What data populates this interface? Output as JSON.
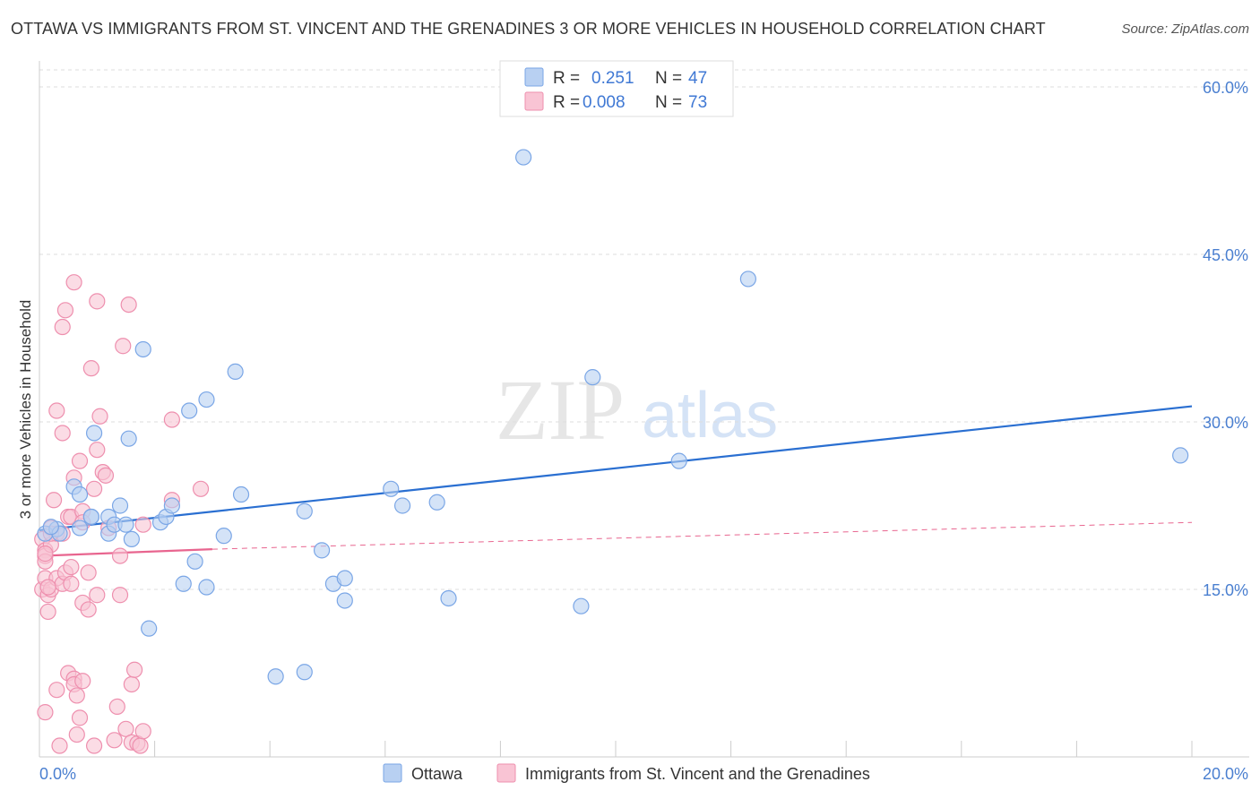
{
  "title": "OTTAWA VS IMMIGRANTS FROM ST. VINCENT AND THE GRENADINES 3 OR MORE VEHICLES IN HOUSEHOLD CORRELATION CHART",
  "source": "Source: ZipAtlas.com",
  "watermark": {
    "zip": "ZIP",
    "atlas": "atlas"
  },
  "colors": {
    "ottawa_fill": "#b8d0f2",
    "ottawa_stroke": "#7aa6e6",
    "ottawa_line": "#2a6fd1",
    "svg_fill": "#f9c4d4",
    "svg_stroke": "#ee8fae",
    "svg_line": "#e8658f",
    "grid": "#dddddd",
    "tick": "#4a7fd0"
  },
  "legend": {
    "rows": [
      {
        "r_label": "R =",
        "r_value": "0.251",
        "n_label": "N =",
        "n_value": "47"
      },
      {
        "r_label": "R =",
        "r_value": "0.008",
        "n_label": "N =",
        "n_value": "73"
      }
    ]
  },
  "chart_data": {
    "type": "scatter",
    "title": "OTTAWA VS IMMIGRANTS FROM ST. VINCENT AND THE GRENADINES 3 OR MORE VEHICLES IN HOUSEHOLD CORRELATION CHART",
    "xlabel": "",
    "ylabel": "3 or more Vehicles in Household",
    "xlim": [
      0,
      20
    ],
    "ylim": [
      0,
      60
    ],
    "x_tick_labels": [
      "0.0%",
      "20.0%"
    ],
    "y_ticks": [
      15,
      30,
      45,
      60
    ],
    "y_tick_labels": [
      "15.0%",
      "30.0%",
      "45.0%",
      "60.0%"
    ],
    "grid": true,
    "series": [
      {
        "name": "Ottawa",
        "R": 0.251,
        "N": 47,
        "trend": {
          "x": [
            0,
            20
          ],
          "y": [
            20.3,
            31.4
          ],
          "style": "solid"
        },
        "points": [
          [
            0.1,
            20.0
          ],
          [
            0.3,
            20.4
          ],
          [
            0.35,
            20.0
          ],
          [
            0.6,
            24.2
          ],
          [
            0.7,
            23.5
          ],
          [
            0.7,
            20.5
          ],
          [
            0.9,
            21.5
          ],
          [
            0.9,
            21.5
          ],
          [
            0.95,
            29.0
          ],
          [
            1.2,
            21.5
          ],
          [
            1.2,
            20.0
          ],
          [
            1.3,
            20.8
          ],
          [
            1.4,
            22.5
          ],
          [
            1.5,
            20.8
          ],
          [
            1.55,
            28.5
          ],
          [
            1.6,
            19.5
          ],
          [
            1.8,
            36.5
          ],
          [
            1.9,
            11.5
          ],
          [
            2.1,
            21.0
          ],
          [
            2.2,
            21.5
          ],
          [
            2.3,
            22.5
          ],
          [
            2.5,
            15.5
          ],
          [
            2.6,
            31.0
          ],
          [
            2.7,
            17.5
          ],
          [
            2.9,
            32.0
          ],
          [
            2.9,
            15.2
          ],
          [
            3.2,
            19.8
          ],
          [
            3.4,
            34.5
          ],
          [
            3.5,
            23.5
          ],
          [
            4.1,
            7.2
          ],
          [
            4.6,
            22.0
          ],
          [
            4.6,
            7.6
          ],
          [
            4.9,
            18.5
          ],
          [
            5.1,
            15.5
          ],
          [
            5.3,
            16.0
          ],
          [
            5.3,
            14.0
          ],
          [
            6.1,
            24.0
          ],
          [
            6.3,
            22.5
          ],
          [
            6.9,
            22.8
          ],
          [
            7.1,
            14.2
          ],
          [
            8.4,
            53.7
          ],
          [
            9.4,
            13.5
          ],
          [
            9.6,
            34.0
          ],
          [
            11.1,
            26.5
          ],
          [
            12.3,
            42.8
          ],
          [
            19.8,
            27.0
          ],
          [
            0.2,
            20.6
          ]
        ]
      },
      {
        "name": "Immigrants from St. Vincent and the Grenadines",
        "R": 0.008,
        "N": 73,
        "trend": {
          "x": [
            0,
            3.0
          ],
          "y": [
            18.0,
            18.6
          ],
          "style": "solid"
        },
        "trend_extended": {
          "x": [
            3.0,
            20
          ],
          "y": [
            18.6,
            21.0
          ],
          "style": "dashed"
        },
        "points": [
          [
            0.05,
            19.5
          ],
          [
            0.05,
            15.0
          ],
          [
            0.1,
            18.5
          ],
          [
            0.1,
            18.0
          ],
          [
            0.1,
            17.5
          ],
          [
            0.1,
            16.0
          ],
          [
            0.15,
            14.5
          ],
          [
            0.15,
            13.0
          ],
          [
            0.2,
            20.5
          ],
          [
            0.2,
            19.0
          ],
          [
            0.2,
            15.0
          ],
          [
            0.25,
            23.0
          ],
          [
            0.3,
            31.0
          ],
          [
            0.3,
            20.0
          ],
          [
            0.3,
            16.0
          ],
          [
            0.3,
            6.0
          ],
          [
            0.35,
            1.0
          ],
          [
            0.4,
            38.5
          ],
          [
            0.4,
            29.0
          ],
          [
            0.4,
            20.0
          ],
          [
            0.4,
            15.5
          ],
          [
            0.45,
            40.0
          ],
          [
            0.45,
            16.5
          ],
          [
            0.5,
            21.5
          ],
          [
            0.5,
            7.5
          ],
          [
            0.55,
            21.5
          ],
          [
            0.55,
            17.0
          ],
          [
            0.55,
            15.5
          ],
          [
            0.6,
            42.5
          ],
          [
            0.6,
            25.0
          ],
          [
            0.6,
            7.0
          ],
          [
            0.6,
            6.5
          ],
          [
            0.65,
            5.5
          ],
          [
            0.65,
            2.0
          ],
          [
            0.7,
            26.5
          ],
          [
            0.7,
            3.5
          ],
          [
            0.75,
            22.0
          ],
          [
            0.75,
            21.0
          ],
          [
            0.75,
            13.8
          ],
          [
            0.75,
            6.8
          ],
          [
            0.85,
            13.2
          ],
          [
            0.85,
            16.5
          ],
          [
            0.9,
            34.8
          ],
          [
            0.95,
            24.0
          ],
          [
            0.95,
            1.0
          ],
          [
            1.0,
            40.8
          ],
          [
            1.0,
            27.5
          ],
          [
            1.0,
            14.5
          ],
          [
            1.05,
            30.5
          ],
          [
            1.1,
            25.5
          ],
          [
            1.15,
            25.2
          ],
          [
            1.2,
            20.5
          ],
          [
            1.3,
            1.5
          ],
          [
            1.35,
            4.5
          ],
          [
            1.4,
            18.0
          ],
          [
            1.4,
            14.5
          ],
          [
            1.45,
            36.8
          ],
          [
            1.5,
            2.5
          ],
          [
            1.55,
            40.5
          ],
          [
            1.6,
            6.5
          ],
          [
            1.6,
            1.3
          ],
          [
            1.65,
            7.8
          ],
          [
            1.7,
            1.2
          ],
          [
            1.75,
            1.0
          ],
          [
            1.8,
            20.8
          ],
          [
            1.8,
            2.3
          ],
          [
            2.3,
            30.2
          ],
          [
            2.3,
            23.0
          ],
          [
            2.8,
            24.0
          ],
          [
            0.1,
            4.0
          ],
          [
            0.1,
            18.2
          ],
          [
            0.15,
            15.2
          ],
          [
            0.2,
            20.0
          ]
        ]
      }
    ]
  },
  "bottom_legend": {
    "items": [
      "Ottawa",
      "Immigrants from St. Vincent and the Grenadines"
    ]
  }
}
